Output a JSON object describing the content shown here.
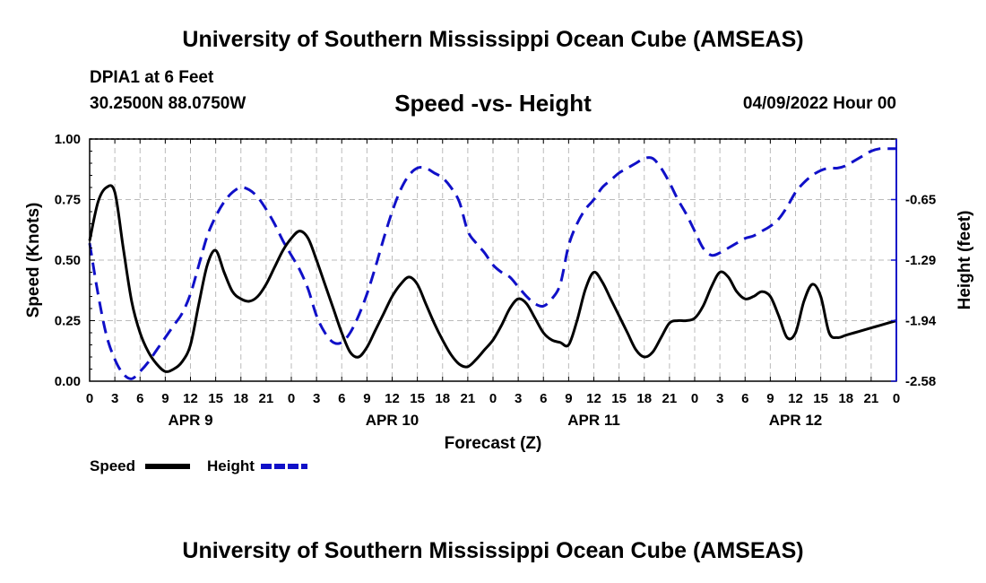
{
  "header": {
    "title": "University of Southern Mississippi Ocean Cube (AMSEAS)",
    "station": "DPIA1 at 6 Feet",
    "coords": "30.2500N  88.0750W",
    "subtitle": "Speed -vs- Height",
    "datetime": "04/09/2022 Hour 00"
  },
  "footer": {
    "title": "University of Southern Mississippi Ocean Cube (AMSEAS)"
  },
  "legend": {
    "speed_label": "Speed",
    "height_label": "Height"
  },
  "colors": {
    "speed": "#000000",
    "height": "#1010c8",
    "grid": "#bbbbbb"
  },
  "chart_data": {
    "type": "line",
    "title": "Speed -vs- Height",
    "xlabel": "Forecast (Z)",
    "ylabel": "Speed (Knots)",
    "ylabel_right": "Height (feet)",
    "xlim": [
      0,
      96
    ],
    "ylim": [
      0,
      1
    ],
    "x_ticks": [
      0,
      3,
      6,
      9,
      12,
      15,
      18,
      21,
      24,
      27,
      30,
      33,
      36,
      39,
      42,
      45,
      48,
      51,
      54,
      57,
      60,
      63,
      66,
      69,
      72,
      75,
      78,
      81,
      84,
      87,
      90,
      93,
      96
    ],
    "x_tick_labels": [
      "0",
      "3",
      "6",
      "9",
      "12",
      "15",
      "18",
      "21",
      "0",
      "3",
      "6",
      "9",
      "12",
      "15",
      "18",
      "21",
      "0",
      "3",
      "6",
      "9",
      "12",
      "15",
      "18",
      "21",
      "0",
      "3",
      "6",
      "9",
      "12",
      "15",
      "18",
      "21",
      "0"
    ],
    "day_labels": [
      {
        "x": 12,
        "label": "APR 9"
      },
      {
        "x": 36,
        "label": "APR 10"
      },
      {
        "x": 60,
        "label": "APR 11"
      },
      {
        "x": 84,
        "label": "APR 12"
      }
    ],
    "y_ticks": [
      0,
      0.25,
      0.5,
      0.75,
      1
    ],
    "y_tick_labels": [
      "0.00",
      "0.25",
      "0.50",
      "0.75",
      "1.00"
    ],
    "y2_ticks": [
      {
        "y": 0.0,
        "label": "-2.58"
      },
      {
        "y": 0.25,
        "label": "-1.94"
      },
      {
        "y": 0.5,
        "label": "-1.29"
      },
      {
        "y": 0.75,
        "label": "-0.65"
      }
    ],
    "grid": true,
    "series": [
      {
        "name": "Speed",
        "axis": "left",
        "style": "solid",
        "x": [
          0,
          1,
          2,
          3,
          4,
          5,
          6,
          7,
          8,
          9,
          10,
          11,
          12,
          13,
          14,
          15,
          16,
          17,
          18,
          19,
          20,
          21,
          22,
          23,
          24,
          25,
          26,
          27,
          28,
          29,
          30,
          31,
          32,
          33,
          34,
          35,
          36,
          37,
          38,
          39,
          40,
          41,
          42,
          43,
          44,
          45,
          46,
          47,
          48,
          49,
          50,
          51,
          52,
          53,
          54,
          55,
          56,
          57,
          58,
          59,
          60,
          61,
          62,
          63,
          64,
          65,
          66,
          67,
          68,
          69,
          70,
          71,
          72,
          73,
          74,
          75,
          76,
          77,
          78,
          79,
          80,
          81,
          82,
          83,
          84,
          85,
          86,
          87,
          88,
          89,
          90,
          91,
          92,
          93,
          94,
          95,
          96
        ],
        "values": [
          0.58,
          0.74,
          0.8,
          0.78,
          0.55,
          0.33,
          0.2,
          0.12,
          0.07,
          0.04,
          0.05,
          0.08,
          0.15,
          0.32,
          0.48,
          0.54,
          0.45,
          0.37,
          0.34,
          0.33,
          0.35,
          0.4,
          0.47,
          0.54,
          0.59,
          0.62,
          0.59,
          0.5,
          0.4,
          0.3,
          0.2,
          0.12,
          0.1,
          0.14,
          0.21,
          0.28,
          0.35,
          0.4,
          0.43,
          0.4,
          0.32,
          0.24,
          0.17,
          0.11,
          0.07,
          0.06,
          0.09,
          0.13,
          0.17,
          0.23,
          0.3,
          0.34,
          0.32,
          0.26,
          0.2,
          0.17,
          0.16,
          0.15,
          0.25,
          0.38,
          0.45,
          0.41,
          0.34,
          0.27,
          0.2,
          0.13,
          0.1,
          0.12,
          0.18,
          0.24,
          0.25,
          0.25,
          0.26,
          0.31,
          0.39,
          0.45,
          0.43,
          0.37,
          0.34,
          0.35,
          0.37,
          0.35,
          0.27,
          0.18,
          0.2,
          0.33,
          0.4,
          0.35,
          0.2,
          0.18,
          0.19,
          0.2,
          0.21,
          0.22,
          0.23,
          0.24,
          0.25
        ]
      },
      {
        "name": "Height",
        "axis": "right",
        "style": "dashed",
        "x": [
          0,
          1,
          2,
          3,
          4,
          5,
          6,
          7,
          8,
          9,
          10,
          11,
          12,
          13,
          14,
          15,
          16,
          17,
          18,
          19,
          20,
          21,
          22,
          23,
          24,
          25,
          26,
          27,
          28,
          29,
          30,
          31,
          32,
          33,
          34,
          35,
          36,
          37,
          38,
          39,
          40,
          41,
          42,
          43,
          44,
          45,
          46,
          47,
          48,
          49,
          50,
          51,
          52,
          53,
          54,
          55,
          56,
          57,
          58,
          59,
          60,
          61,
          62,
          63,
          64,
          65,
          66,
          67,
          68,
          69,
          70,
          71,
          72,
          73,
          74,
          75,
          76,
          77,
          78,
          79,
          80,
          81,
          82,
          83,
          84,
          85,
          86,
          87,
          88,
          89,
          90,
          91,
          92,
          93,
          94,
          95,
          96
        ],
        "values": [
          0.57,
          0.36,
          0.19,
          0.09,
          0.03,
          0.01,
          0.04,
          0.08,
          0.13,
          0.18,
          0.23,
          0.28,
          0.36,
          0.48,
          0.6,
          0.68,
          0.74,
          0.78,
          0.8,
          0.79,
          0.76,
          0.71,
          0.65,
          0.58,
          0.52,
          0.46,
          0.38,
          0.27,
          0.2,
          0.16,
          0.16,
          0.2,
          0.27,
          0.36,
          0.47,
          0.59,
          0.7,
          0.79,
          0.85,
          0.88,
          0.88,
          0.86,
          0.84,
          0.8,
          0.74,
          0.62,
          0.57,
          0.53,
          0.48,
          0.45,
          0.43,
          0.39,
          0.35,
          0.32,
          0.31,
          0.34,
          0.4,
          0.56,
          0.65,
          0.71,
          0.75,
          0.8,
          0.83,
          0.86,
          0.88,
          0.9,
          0.92,
          0.92,
          0.88,
          0.82,
          0.75,
          0.69,
          0.62,
          0.55,
          0.52,
          0.53,
          0.55,
          0.57,
          0.59,
          0.6,
          0.62,
          0.64,
          0.67,
          0.72,
          0.78,
          0.82,
          0.85,
          0.87,
          0.88,
          0.88,
          0.89,
          0.91,
          0.93,
          0.95,
          0.96,
          0.96,
          0.96
        ]
      }
    ]
  }
}
